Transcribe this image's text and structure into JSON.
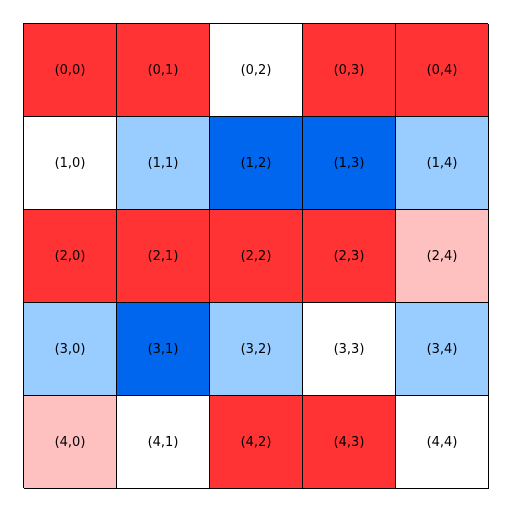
{
  "colors": {
    "red": "#ff3333",
    "light_red": "#ffc0c0",
    "blue": "#0066ee",
    "light_blue": "#99ccff",
    "white": "#ffffff"
  },
  "board": {
    "rows": 5,
    "cols": 5,
    "cells": [
      [
        {
          "label": "(0,0)",
          "color": "red"
        },
        {
          "label": "(0,1)",
          "color": "red"
        },
        {
          "label": "(0,2)",
          "color": "white"
        },
        {
          "label": "(0,3)",
          "color": "red"
        },
        {
          "label": "(0,4)",
          "color": "red"
        }
      ],
      [
        {
          "label": "(1,0)",
          "color": "white"
        },
        {
          "label": "(1,1)",
          "color": "light_blue"
        },
        {
          "label": "(1,2)",
          "color": "blue"
        },
        {
          "label": "(1,3)",
          "color": "blue"
        },
        {
          "label": "(1,4)",
          "color": "light_blue"
        }
      ],
      [
        {
          "label": "(2,0)",
          "color": "red"
        },
        {
          "label": "(2,1)",
          "color": "red"
        },
        {
          "label": "(2,2)",
          "color": "red"
        },
        {
          "label": "(2,3)",
          "color": "red"
        },
        {
          "label": "(2,4)",
          "color": "light_red"
        }
      ],
      [
        {
          "label": "(3,0)",
          "color": "light_blue"
        },
        {
          "label": "(3,1)",
          "color": "blue"
        },
        {
          "label": "(3,2)",
          "color": "light_blue"
        },
        {
          "label": "(3,3)",
          "color": "white"
        },
        {
          "label": "(3,4)",
          "color": "light_blue"
        }
      ],
      [
        {
          "label": "(4,0)",
          "color": "light_red"
        },
        {
          "label": "(4,1)",
          "color": "white"
        },
        {
          "label": "(4,2)",
          "color": "red"
        },
        {
          "label": "(4,3)",
          "color": "red"
        },
        {
          "label": "(4,4)",
          "color": "white"
        }
      ]
    ]
  }
}
